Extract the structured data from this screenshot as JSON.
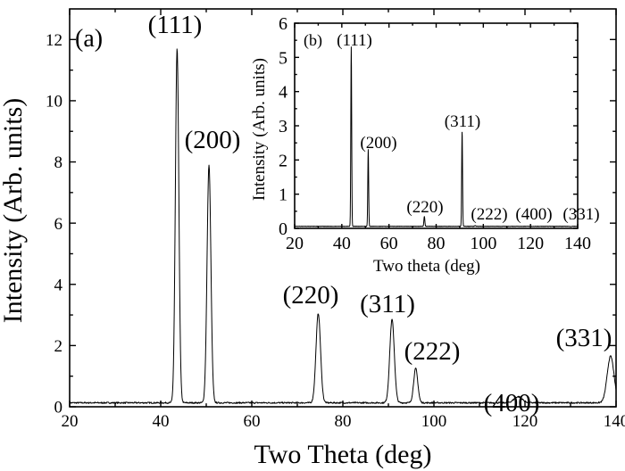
{
  "chart_data": [
    {
      "type": "line",
      "panel_label": "(a)",
      "xlabel": "Two Theta (deg)",
      "ylabel": "Intensity (Arb. units)",
      "xlim": [
        20,
        140
      ],
      "ylim": [
        0,
        13
      ],
      "xticks": [
        20,
        40,
        60,
        80,
        100,
        120,
        140
      ],
      "yticks": [
        0,
        2,
        4,
        6,
        8,
        10,
        12
      ],
      "baseline": 0.13,
      "peaks": [
        {
          "label": "(111)",
          "x": 43.6,
          "y": 11.7,
          "width": 0.38
        },
        {
          "label": "(200)",
          "x": 50.6,
          "y": 7.9,
          "width": 0.42
        },
        {
          "label": "(220)",
          "x": 74.6,
          "y": 3.05,
          "width": 0.5
        },
        {
          "label": "(311)",
          "x": 90.8,
          "y": 2.85,
          "width": 0.5
        },
        {
          "label": "(222)",
          "x": 96.0,
          "y": 1.25,
          "width": 0.45
        },
        {
          "label": "(400)",
          "x": 118.5,
          "y": 0.33,
          "width": 0.9
        },
        {
          "label": "(331)",
          "x": 138.8,
          "y": 1.65,
          "width": 0.75
        }
      ]
    },
    {
      "type": "line",
      "panel_label": "(b)",
      "xlabel": "Two theta (deg)",
      "ylabel": "Intensity (Arb. units)",
      "xlim": [
        20,
        140
      ],
      "ylim": [
        0,
        6
      ],
      "xticks": [
        20,
        40,
        60,
        80,
        100,
        120,
        140
      ],
      "yticks": [
        0,
        1,
        2,
        3,
        4,
        5,
        6
      ],
      "baseline": 0.06,
      "peaks": [
        {
          "label": "(111)",
          "x": 44.0,
          "y": 5.3,
          "width": 0.18
        },
        {
          "label": "(200)",
          "x": 51.2,
          "y": 2.3,
          "width": 0.18
        },
        {
          "label": "(220)",
          "x": 75.0,
          "y": 0.35,
          "width": 0.2
        },
        {
          "label": "(311)",
          "x": 91.0,
          "y": 2.85,
          "width": 0.18
        },
        {
          "label": "(222)",
          "x": 96.5,
          "y": 0.08,
          "width": 0.2
        },
        {
          "label": "(400)",
          "x": 118.0,
          "y": 0.06,
          "width": 0.3
        },
        {
          "label": "(331)",
          "x": 137.0,
          "y": 0.05,
          "width": 0.3
        }
      ]
    }
  ]
}
